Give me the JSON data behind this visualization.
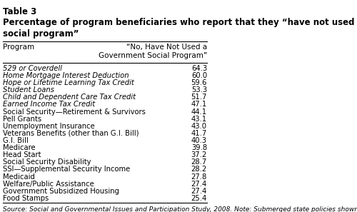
{
  "table_number": "Table 3",
  "title": "Percentage of program beneficiaries who report that they “have not used a government\nsocial program”",
  "col_header_left": "Program",
  "col_header_right": "“No, Have Not Used a\nGovernment Social Program”",
  "rows": [
    {
      "program": "529 or Coverdell",
      "value": "64.3",
      "italic": true
    },
    {
      "program": "Home Mortgage Interest Deduction",
      "value": "60.0",
      "italic": true
    },
    {
      "program": "Hope or Lifetime Learning Tax Credit",
      "value": "59.6",
      "italic": true
    },
    {
      "program": "Student Loans",
      "value": "53.3",
      "italic": true
    },
    {
      "program": "Child and Dependent Care Tax Credit",
      "value": "51.7",
      "italic": true
    },
    {
      "program": "Earned Income Tax Credit",
      "value": "47.1",
      "italic": true
    },
    {
      "program": "Social Security—Retirement & Survivors",
      "value": "44.1",
      "italic": false
    },
    {
      "program": "Pell Grants",
      "value": "43.1",
      "italic": false
    },
    {
      "program": "Unemployment Insurance",
      "value": "43.0",
      "italic": false
    },
    {
      "program": "Veterans Benefits (other than G.I. Bill)",
      "value": "41.7",
      "italic": false
    },
    {
      "program": "G.I. Bill",
      "value": "40.3",
      "italic": false
    },
    {
      "program": "Medicare",
      "value": "39.8",
      "italic": false
    },
    {
      "program": "Head Start",
      "value": "37.2",
      "italic": false
    },
    {
      "program": "Social Security Disability",
      "value": "28.7",
      "italic": false
    },
    {
      "program": "SSI—Supplemental Security Income",
      "value": "28.2",
      "italic": false
    },
    {
      "program": "Medicaid",
      "value": "27.8",
      "italic": false
    },
    {
      "program": "Welfare/Public Assistance",
      "value": "27.4",
      "italic": false
    },
    {
      "program": "Government Subsidized Housing",
      "value": "27.4",
      "italic": false
    },
    {
      "program": "Food Stamps",
      "value": "25.4",
      "italic": false
    }
  ],
  "footnote": "Source: Social and Governmental Issues and Participation Study, 2008. Note: Submerged state policies shown in italics.",
  "bg_color": "#ffffff",
  "text_color": "#000000",
  "header_fontsize": 7.5,
  "row_fontsize": 7.2,
  "footnote_fontsize": 6.5,
  "title_fontsize": 8.5,
  "table_number_fontsize": 8.5
}
